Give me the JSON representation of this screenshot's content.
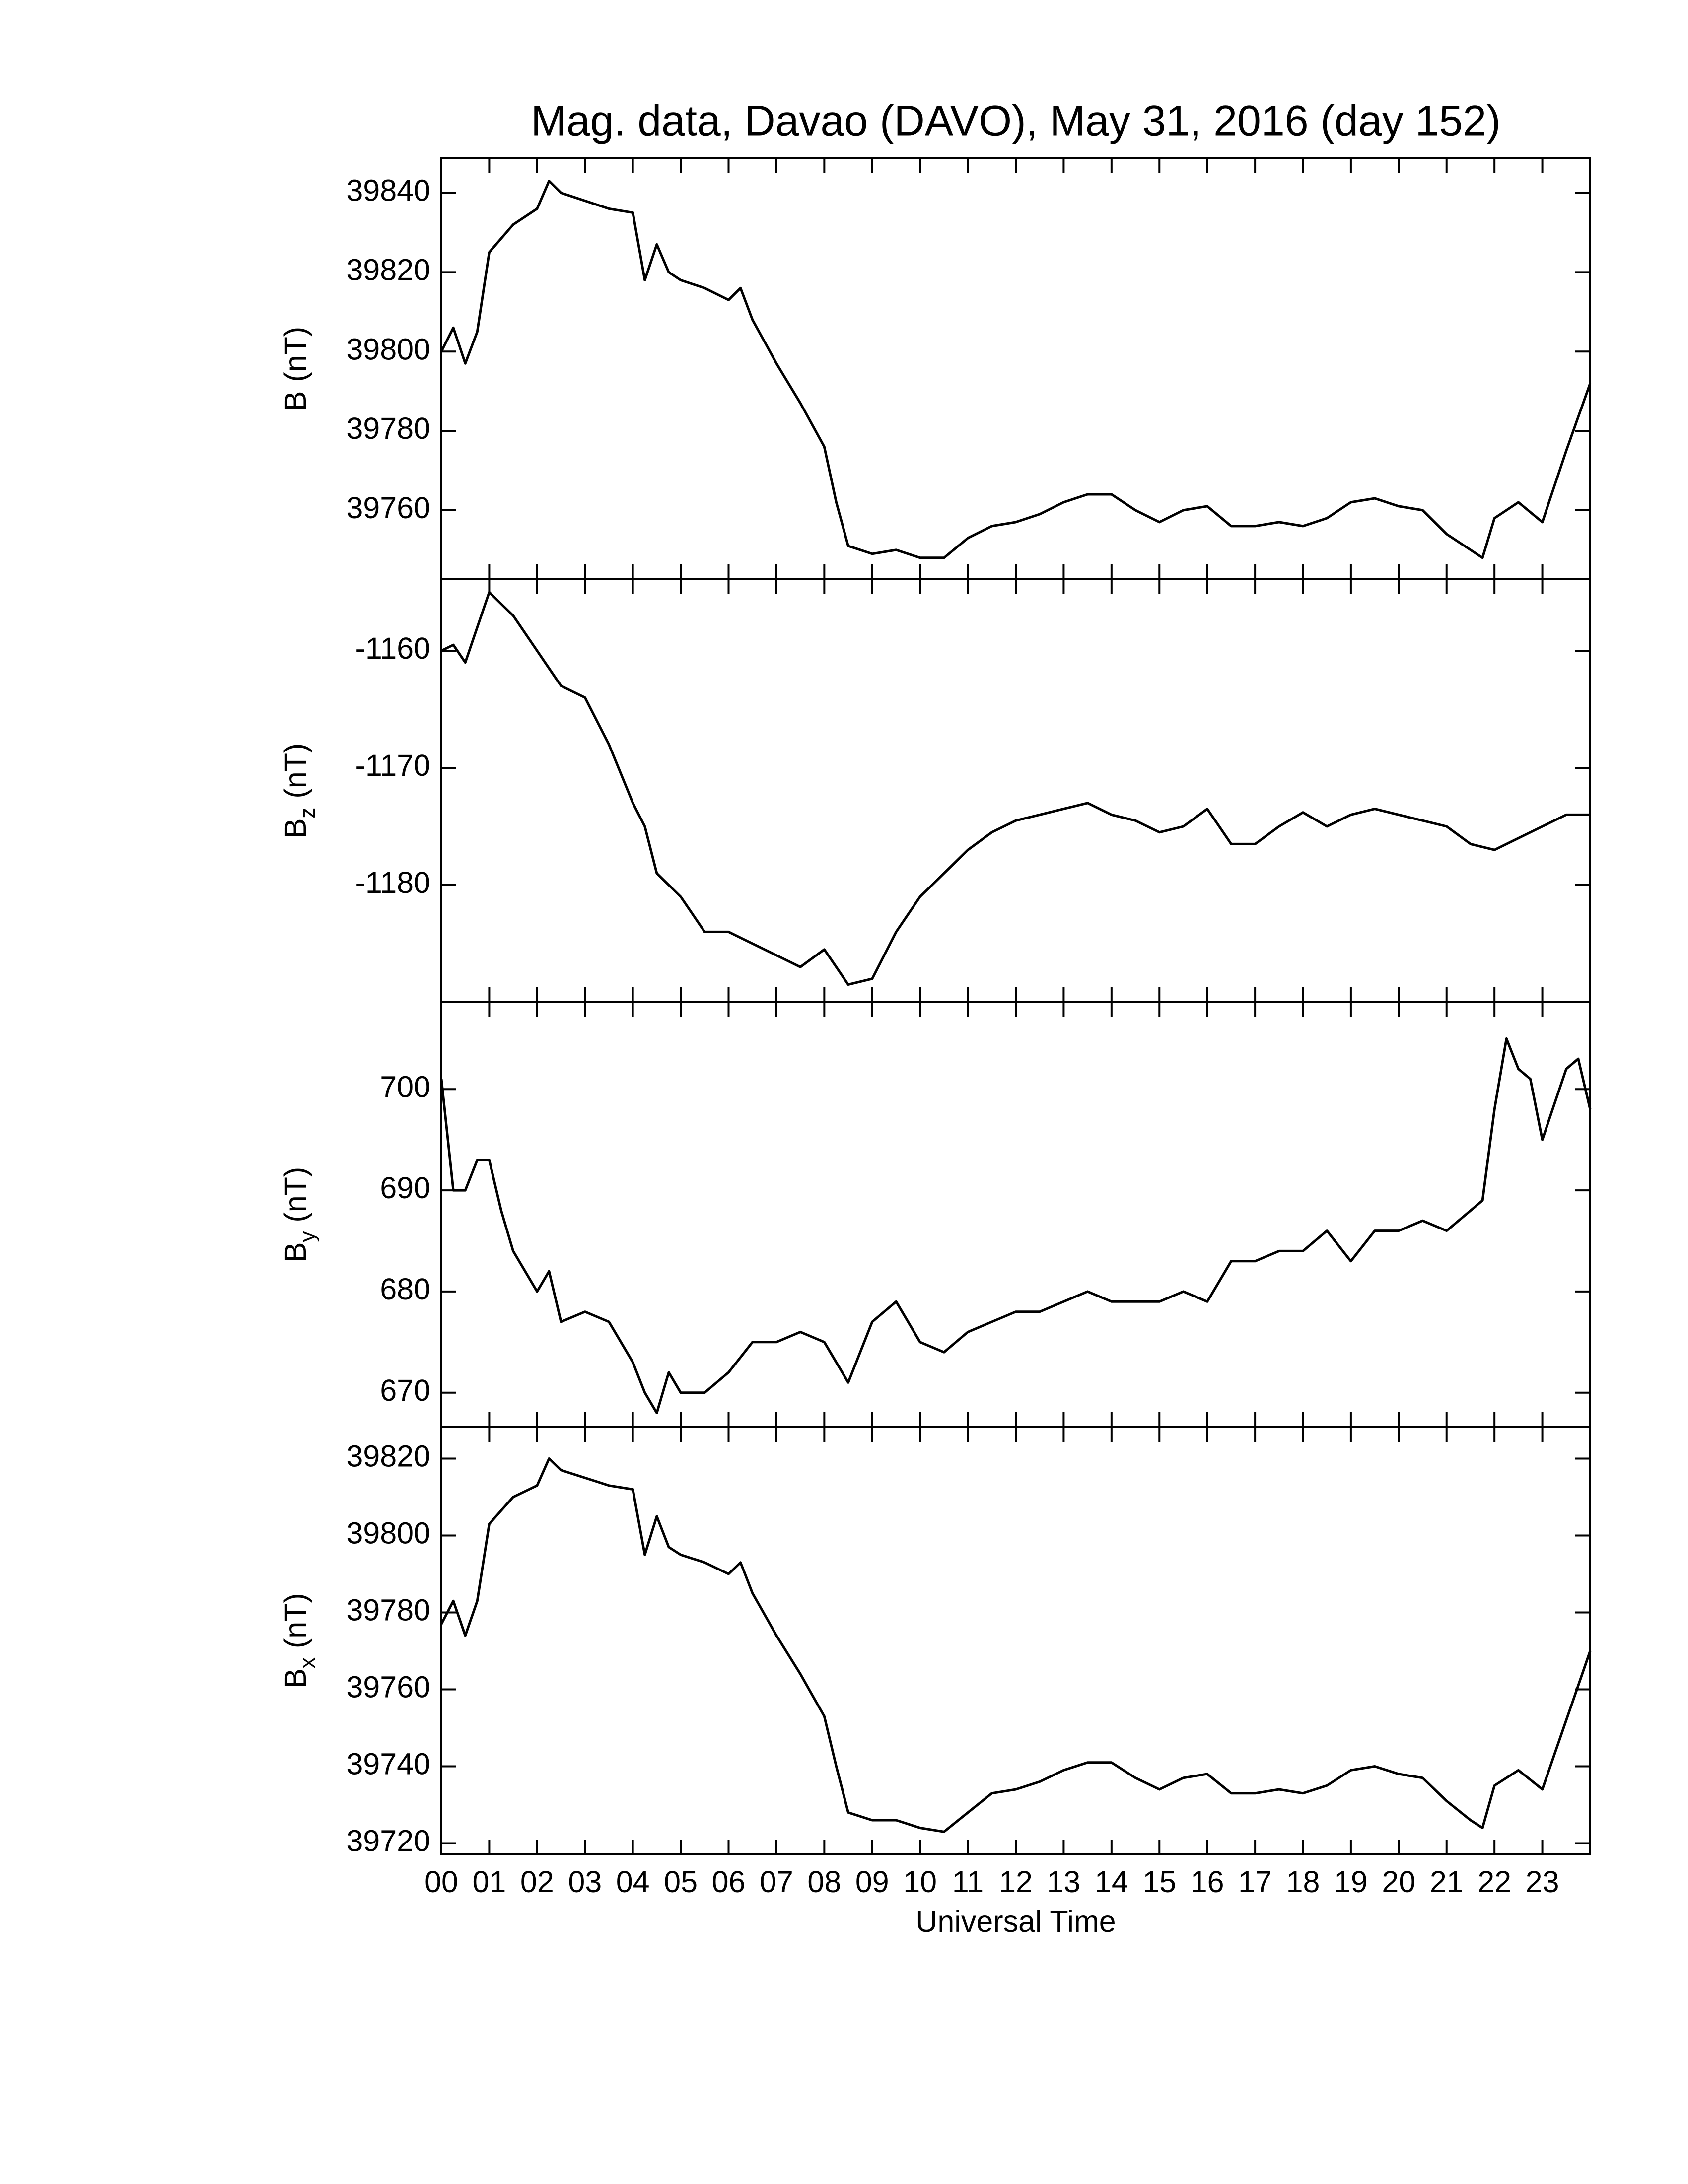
{
  "chart_data": [
    {
      "type": "line",
      "title": "Mag. data, Davao (DAVO), May 31, 2016 (day 152)",
      "ylabel": {
        "symbol": "B",
        "unit": "(nT)"
      },
      "color": "#000000",
      "x": [
        0,
        0.25,
        0.5,
        0.75,
        1,
        1.5,
        2,
        2.25,
        2.5,
        3,
        3.5,
        4,
        4.25,
        4.5,
        4.75,
        5,
        5.5,
        6,
        6.25,
        6.5,
        7,
        7.5,
        8,
        8.25,
        8.5,
        9,
        9.5,
        10,
        10.5,
        11,
        11.5,
        12,
        12.5,
        13,
        13.5,
        14,
        14.5,
        15,
        15.5,
        16,
        16.5,
        17,
        17.5,
        18,
        18.5,
        19,
        19.5,
        20,
        20.5,
        21,
        21.5,
        21.75,
        22,
        22.5,
        23,
        23.5,
        24
      ],
      "values": [
        39800,
        39806,
        39797,
        39805,
        39825,
        39832,
        39836,
        39843,
        39840,
        39838,
        39836,
        39835,
        39818,
        39827,
        39820,
        39818,
        39816,
        39813,
        39816,
        39808,
        39797,
        39787,
        39776,
        39762,
        39751,
        39749,
        39750,
        39748,
        39748,
        39753,
        39756,
        39757,
        39759,
        39762,
        39764,
        39764,
        39760,
        39757,
        39760,
        39761,
        39756,
        39756,
        39757,
        39756,
        39758,
        39762,
        39763,
        39761,
        39760,
        39754,
        39750,
        39748,
        39758,
        39762,
        39757,
        39775,
        39792
      ],
      "xlim": [
        0,
        24
      ],
      "xticks": [
        0,
        1,
        2,
        3,
        4,
        5,
        6,
        7,
        8,
        9,
        10,
        11,
        12,
        13,
        14,
        15,
        16,
        17,
        18,
        19,
        20,
        21,
        22,
        23
      ],
      "ylim": [
        39742.6,
        39848.7
      ],
      "yticks": [
        39760,
        39780,
        39800,
        39820,
        39840
      ]
    },
    {
      "type": "line",
      "ylabel": {
        "symbol": "B",
        "subscript": "z",
        "unit": "(nT)"
      },
      "color": "#000000",
      "x": [
        0,
        0.25,
        0.5,
        0.75,
        1,
        1.5,
        2,
        2.5,
        3,
        3.5,
        4,
        4.25,
        4.5,
        5,
        5.5,
        6,
        6.5,
        7,
        7.5,
        8,
        8.5,
        9,
        9.5,
        10,
        10.5,
        11,
        11.5,
        12,
        12.5,
        13,
        13.5,
        14,
        14.5,
        15,
        15.5,
        16,
        16.5,
        17,
        17.5,
        18,
        18.5,
        19,
        19.5,
        20,
        20.5,
        21,
        21.5,
        22,
        22.5,
        23,
        23.5,
        24
      ],
      "values": [
        -1160,
        -1159.5,
        -1161,
        -1158,
        -1155,
        -1157,
        -1160,
        -1163,
        -1164,
        -1168,
        -1173,
        -1175,
        -1179,
        -1181,
        -1184,
        -1184,
        -1185,
        -1186,
        -1187,
        -1185.5,
        -1188.5,
        -1188,
        -1184,
        -1181,
        -1179,
        -1177,
        -1175.5,
        -1174.5,
        -1174,
        -1173.5,
        -1173,
        -1174,
        -1174.5,
        -1175.5,
        -1175,
        -1173.5,
        -1176.5,
        -1176.5,
        -1175,
        -1173.8,
        -1175,
        -1174,
        -1173.5,
        -1174,
        -1174.5,
        -1175,
        -1176.5,
        -1177,
        -1176,
        -1175,
        -1174,
        -1174
      ],
      "xlim": [
        0,
        24
      ],
      "xticks": [
        0,
        1,
        2,
        3,
        4,
        5,
        6,
        7,
        8,
        9,
        10,
        11,
        12,
        13,
        14,
        15,
        16,
        17,
        18,
        19,
        20,
        21,
        22,
        23
      ],
      "ylim": [
        -1190,
        -1153.9
      ],
      "yticks": [
        -1180,
        -1170,
        -1160
      ]
    },
    {
      "type": "line",
      "ylabel": {
        "symbol": "B",
        "subscript": "y",
        "unit": "(nT)"
      },
      "color": "#000000",
      "x": [
        0,
        0.25,
        0.5,
        0.75,
        1,
        1.25,
        1.5,
        2,
        2.25,
        2.5,
        3,
        3.5,
        4,
        4.25,
        4.5,
        4.75,
        5,
        5.5,
        6,
        6.5,
        7,
        7.5,
        8,
        8.5,
        9,
        9.5,
        10,
        10.5,
        11,
        11.5,
        12,
        12.5,
        13,
        13.5,
        14,
        14.5,
        15,
        15.5,
        16,
        16.5,
        17,
        17.5,
        18,
        18.5,
        19,
        19.5,
        20,
        20.5,
        21,
        21.5,
        21.75,
        22,
        22.25,
        22.5,
        22.75,
        23,
        23.5,
        23.75,
        24
      ],
      "values": [
        701,
        690,
        690,
        693,
        693,
        688,
        684,
        680,
        682,
        677,
        678,
        677,
        673,
        670,
        668,
        672,
        670,
        670,
        672,
        675,
        675,
        676,
        675,
        671,
        677,
        679,
        675,
        674,
        676,
        677,
        678,
        678,
        679,
        680,
        679,
        679,
        679,
        680,
        679,
        683,
        683,
        684,
        684,
        686,
        683,
        686,
        686,
        687,
        686,
        688,
        689,
        698,
        705,
        702,
        701,
        695,
        702,
        703,
        698
      ],
      "xlim": [
        0,
        24
      ],
      "xticks": [
        0,
        1,
        2,
        3,
        4,
        5,
        6,
        7,
        8,
        9,
        10,
        11,
        12,
        13,
        14,
        15,
        16,
        17,
        18,
        19,
        20,
        21,
        22,
        23
      ],
      "ylim": [
        666.6,
        708.6
      ],
      "yticks": [
        670,
        680,
        690,
        700
      ]
    },
    {
      "type": "line",
      "ylabel": {
        "symbol": "B",
        "subscript": "x",
        "unit": "(nT)"
      },
      "xlabel": "Universal Time",
      "color": "#000000",
      "x": [
        0,
        0.25,
        0.5,
        0.75,
        1,
        1.5,
        2,
        2.25,
        2.5,
        3,
        3.5,
        4,
        4.25,
        4.5,
        4.75,
        5,
        5.5,
        6,
        6.25,
        6.5,
        7,
        7.5,
        8,
        8.25,
        8.5,
        9,
        9.5,
        10,
        10.5,
        11,
        11.5,
        12,
        12.5,
        13,
        13.5,
        14,
        14.5,
        15,
        15.5,
        16,
        16.5,
        17,
        17.5,
        18,
        18.5,
        19,
        19.5,
        20,
        20.5,
        21,
        21.5,
        21.75,
        22,
        22.5,
        23,
        23.5,
        24
      ],
      "values": [
        39777,
        39783,
        39774,
        39783,
        39803,
        39810,
        39813,
        39820,
        39817,
        39815,
        39813,
        39812,
        39795,
        39805,
        39797,
        39795,
        39793,
        39790,
        39793,
        39785,
        39774,
        39764,
        39753,
        39740,
        39728,
        39726,
        39726,
        39724,
        39723,
        39728,
        39733,
        39734,
        39736,
        39739,
        39741,
        39741,
        39737,
        39734,
        39737,
        39738,
        39733,
        39733,
        39734,
        39733,
        39735,
        39739,
        39740,
        39738,
        39737,
        39731,
        39726,
        39724,
        39735,
        39739,
        39734,
        39752,
        39770
      ],
      "xlim": [
        0,
        24
      ],
      "xticks": [
        {
          "value": 0,
          "label": "00"
        },
        {
          "value": 1,
          "label": "01"
        },
        {
          "value": 2,
          "label": "02"
        },
        {
          "value": 3,
          "label": "03"
        },
        {
          "value": 4,
          "label": "04"
        },
        {
          "value": 5,
          "label": "05"
        },
        {
          "value": 6,
          "label": "06"
        },
        {
          "value": 7,
          "label": "07"
        },
        {
          "value": 8,
          "label": "08"
        },
        {
          "value": 9,
          "label": "09"
        },
        10,
        11,
        12,
        13,
        14,
        15,
        16,
        17,
        18,
        19,
        20,
        21,
        22,
        23
      ],
      "ylim": [
        39717.1,
        39828.2
      ],
      "yticks": [
        39720,
        39740,
        39760,
        39780,
        39800,
        39820
      ]
    }
  ]
}
